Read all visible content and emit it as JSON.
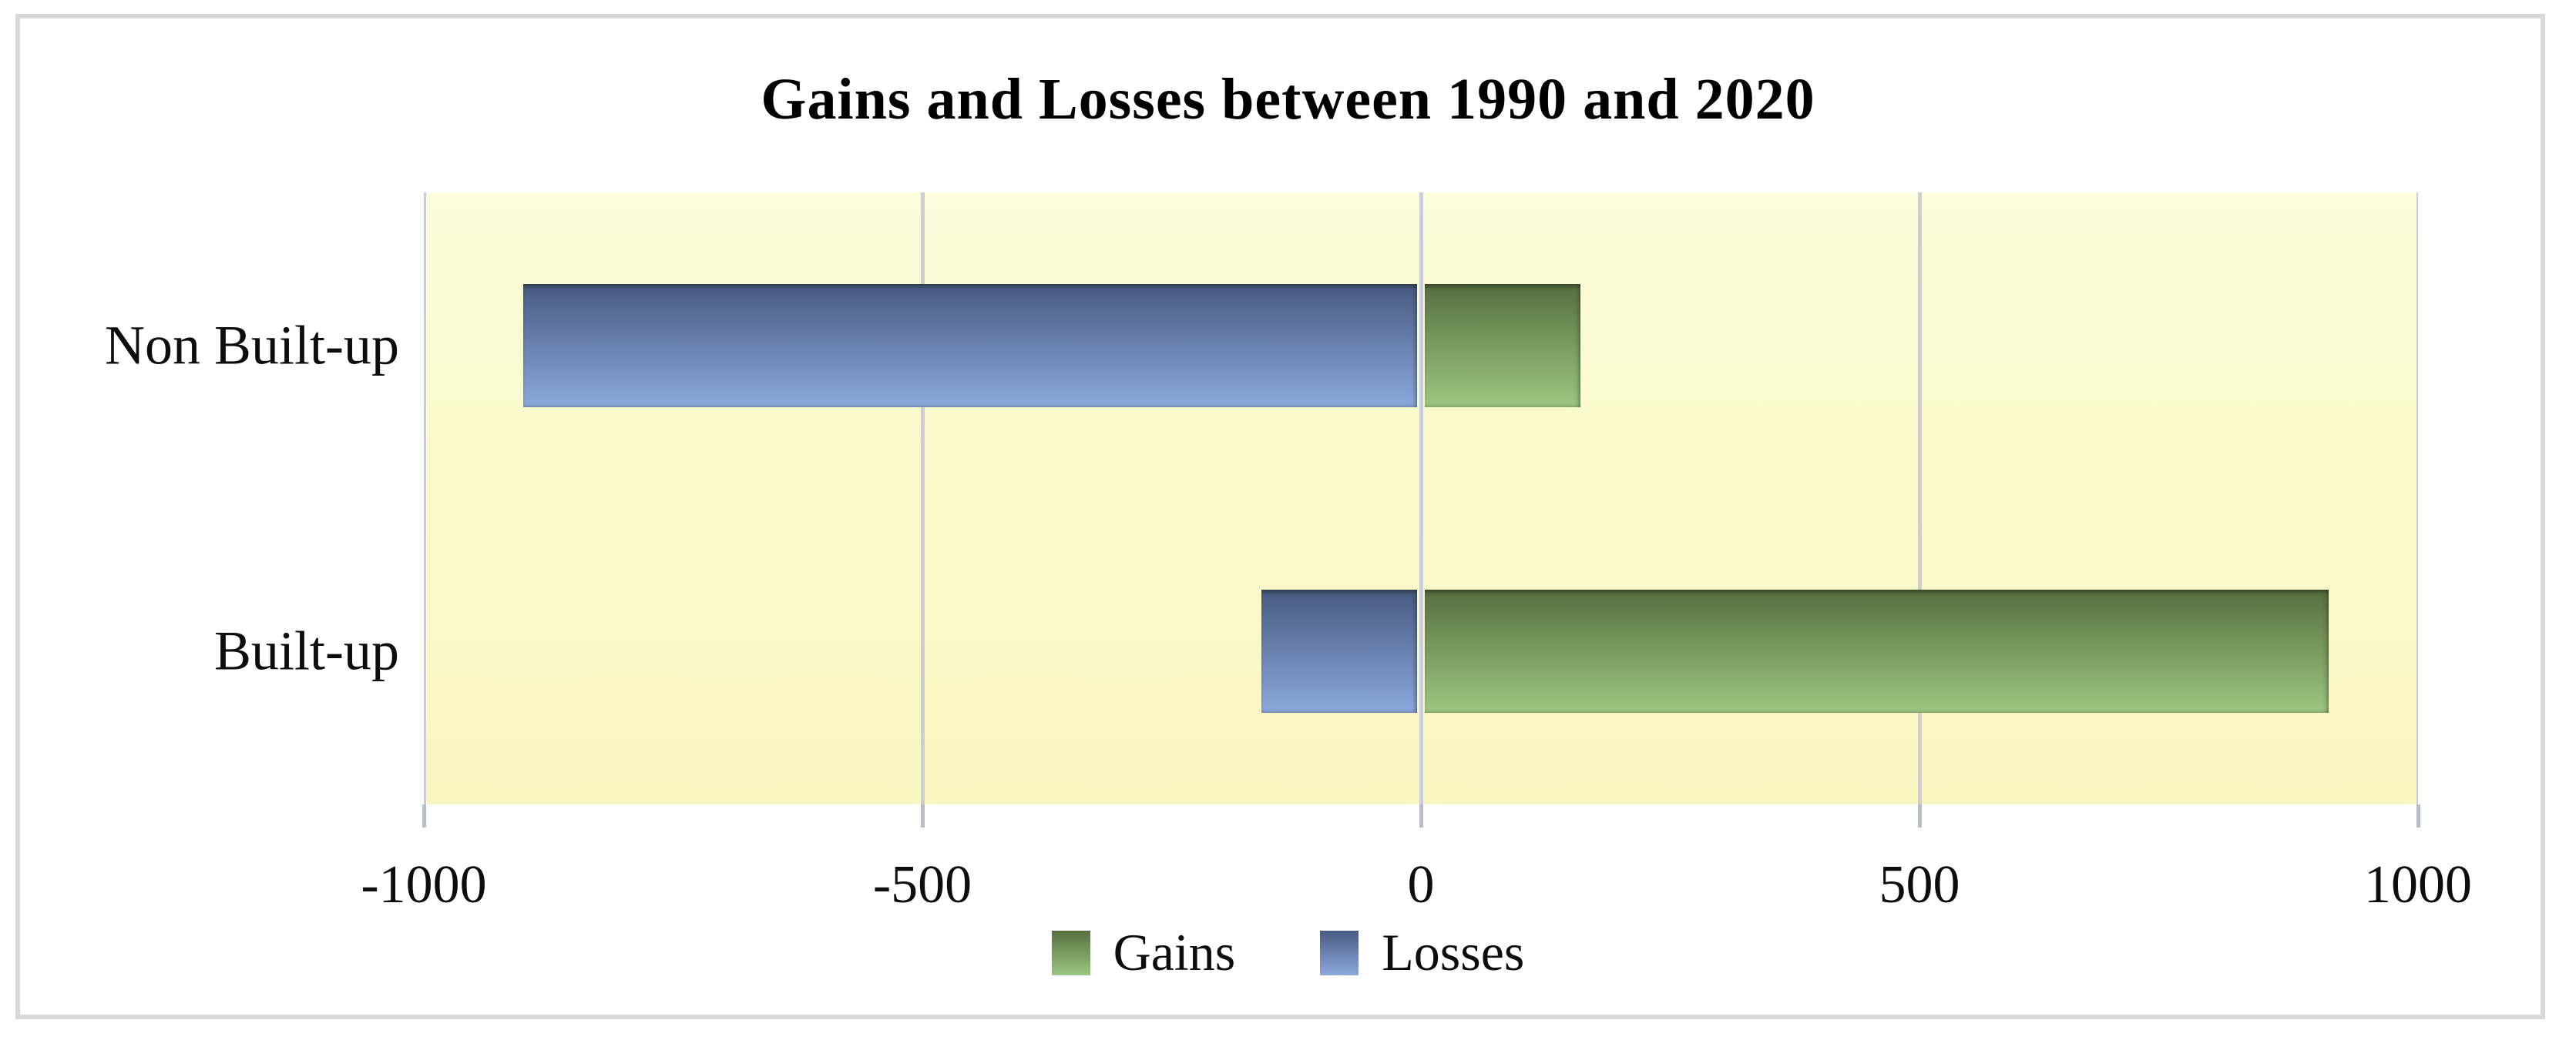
{
  "chart_data": {
    "type": "bar",
    "orientation": "horizontal",
    "title": "Gains and Losses between 1990 and 2020",
    "categories": [
      "Non Built-up",
      "Built-up"
    ],
    "series": [
      {
        "name": "Gains",
        "values": [
          160,
          910
        ],
        "color_top": "#566f40",
        "color_bottom": "#9cc781"
      },
      {
        "name": "Losses",
        "values": [
          -900,
          -160
        ],
        "color_top": "#475b82",
        "color_bottom": "#8da8dc"
      }
    ],
    "xlim": [
      -1000,
      1000
    ],
    "xticks": [
      -1000,
      -500,
      0,
      500,
      1000
    ],
    "xtick_labels": [
      "-1000",
      "-500",
      "0",
      "500",
      "1000"
    ],
    "grid": true,
    "legend_position": "bottom",
    "plot_bg": "#fbf9cb",
    "gridline_color": "#c9ced9",
    "tick_color": "#b7bdc9",
    "frame_color": "#d8d8d8"
  }
}
